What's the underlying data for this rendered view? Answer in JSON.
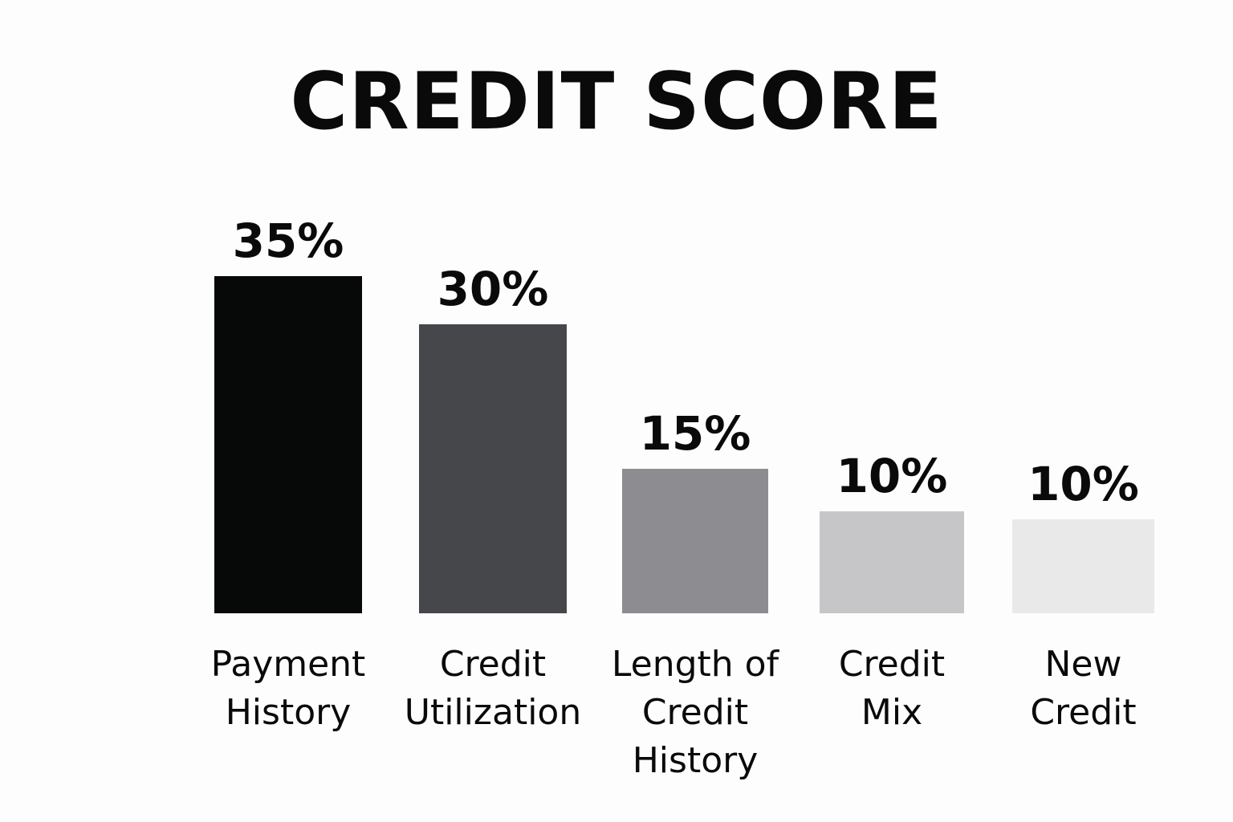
{
  "chart_data": {
    "type": "bar",
    "title": "CREDIT SCORE",
    "xlabel": "",
    "ylabel": "",
    "grid": false,
    "legend": "none",
    "ylim": [
      0,
      35
    ],
    "categories": [
      "Payment History",
      "Credit Utilization",
      "Length of Credit History",
      "Credit Mix",
      "New Credit"
    ],
    "category_lines": [
      [
        "Payment",
        "History"
      ],
      [
        "Credit",
        "Utilization"
      ],
      [
        "Length of",
        "Credit",
        "History"
      ],
      [
        "Credit",
        "Mix"
      ],
      [
        "New",
        "Credit"
      ]
    ],
    "values": [
      35,
      30,
      15,
      10,
      10
    ],
    "value_labels": [
      "35%",
      "30%",
      "15%",
      "10%",
      "10%"
    ],
    "colors": [
      "#070808",
      "#45474b",
      "#8c8c91",
      "#c6c6c8",
      "#e9e9e9"
    ]
  }
}
